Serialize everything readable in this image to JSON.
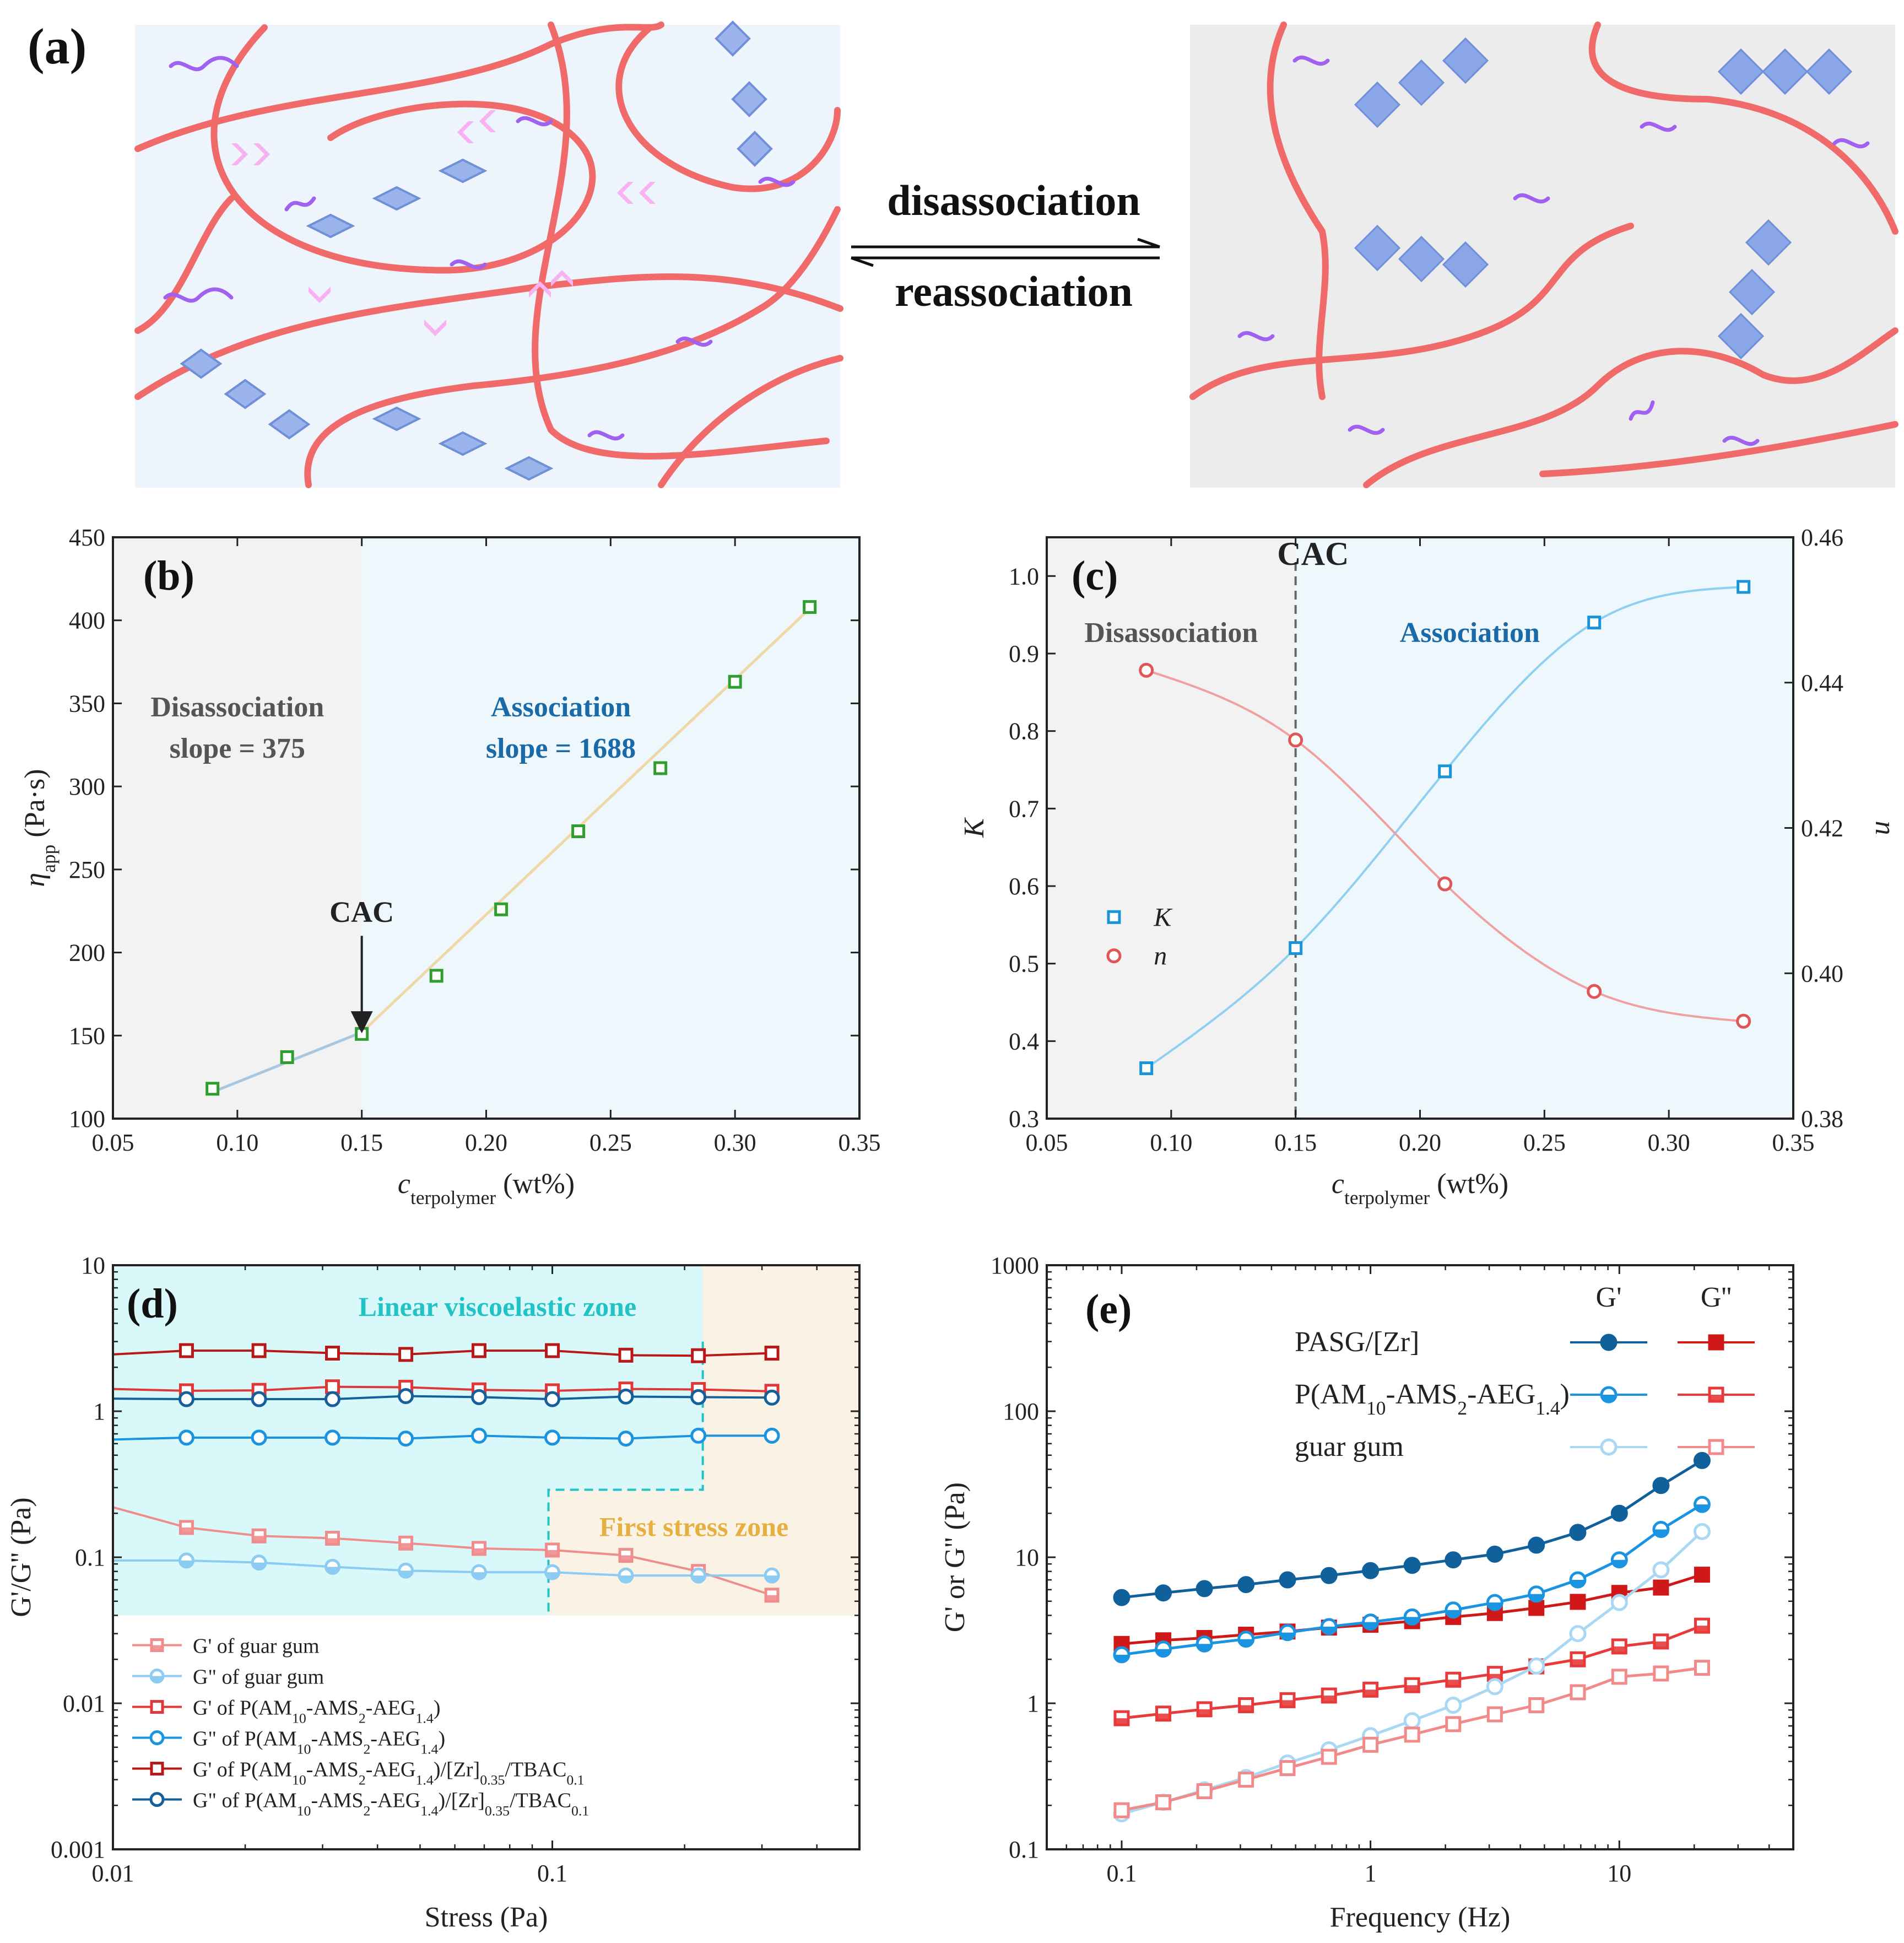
{
  "panel_a": {
    "label": "(a)",
    "arrow_top": "disassociation",
    "arrow_bottom": "reassociation",
    "colors": {
      "left_bg": "#eef4fb",
      "right_bg": "#ececec",
      "chain": "#f06a6a",
      "side": "#a060f0",
      "cluster": "#7fa2e8"
    }
  },
  "chart_data": [
    {
      "id": "b",
      "type": "line",
      "label": "(b)",
      "xlabel_main": "c",
      "xlabel_sub": "terpolymer",
      "xlabel_unit": " (wt%)",
      "ylabel_main": "η",
      "ylabel_sub": "app",
      "ylabel_unit": " (Pa·s)",
      "xlim": [
        0.05,
        0.35
      ],
      "ylim": [
        100,
        450
      ],
      "xticks": [
        0.05,
        0.1,
        0.15,
        0.2,
        0.25,
        0.3,
        0.35
      ],
      "xtick_labels": [
        "0.05",
        "0.10",
        "0.15",
        "0.20",
        "0.25",
        "0.30",
        "0.35"
      ],
      "yticks": [
        100,
        150,
        200,
        250,
        300,
        350,
        400,
        450
      ],
      "ytick_labels": [
        "100",
        "150",
        "200",
        "250",
        "300",
        "350",
        "400",
        "450"
      ],
      "regions": [
        {
          "x0": 0.05,
          "x1": 0.15,
          "color": "#f2f2f2"
        },
        {
          "x0": 0.15,
          "x1": 0.35,
          "color": "#eef7fc"
        }
      ],
      "series": [
        {
          "name": "data",
          "x": [
            0.09,
            0.12,
            0.15,
            0.18,
            0.206,
            0.237,
            0.27,
            0.3,
            0.33
          ],
          "y": [
            118,
            137,
            151,
            186,
            226,
            273,
            311,
            363,
            408
          ],
          "color": "#2f9e2f",
          "marker": "square"
        }
      ],
      "fits": [
        {
          "x": [
            0.09,
            0.15
          ],
          "y": [
            116,
            152
          ],
          "color": "#a9c8e0"
        },
        {
          "x": [
            0.15,
            0.33
          ],
          "y": [
            152,
            407
          ],
          "color": "#efd7a8"
        }
      ],
      "annotations": [
        {
          "lines": [
            "Disassociation",
            "slope = 375"
          ],
          "color": "#555555",
          "x": 0.1,
          "y": 340
        },
        {
          "lines": [
            "Association",
            "slope = 1688"
          ],
          "color": "#1a6aa8",
          "x": 0.23,
          "y": 340
        },
        {
          "lines": [
            "CAC"
          ],
          "color": "#222222",
          "x": 0.15,
          "y": 225,
          "arrow_to": 158
        }
      ]
    },
    {
      "id": "c",
      "type": "scatter",
      "label": "(c)",
      "xlabel_main": "c",
      "xlabel_sub": "terpolymer",
      "xlabel_unit": " (wt%)",
      "ylabel_left": "K",
      "ylabel_right": "n",
      "xlim": [
        0.05,
        0.35
      ],
      "ylim_left": [
        0.3,
        1.05
      ],
      "ylim_right": [
        0.38,
        0.46
      ],
      "xticks": [
        0.05,
        0.1,
        0.15,
        0.2,
        0.25,
        0.3,
        0.35
      ],
      "xtick_labels": [
        "0.05",
        "0.10",
        "0.15",
        "0.20",
        "0.25",
        "0.30",
        "0.35"
      ],
      "yticks_left": [
        0.3,
        0.4,
        0.5,
        0.6,
        0.7,
        0.8,
        0.9,
        1.0
      ],
      "ytick_labels_left": [
        "0.3",
        "0.4",
        "0.5",
        "0.6",
        "0.7",
        "0.8",
        "0.9",
        "1.0"
      ],
      "yticks_right": [
        0.38,
        0.4,
        0.42,
        0.44,
        0.46
      ],
      "ytick_labels_right": [
        "0.38",
        "0.40",
        "0.42",
        "0.44",
        "0.46"
      ],
      "regions": [
        {
          "x0": 0.05,
          "x1": 0.15,
          "color": "#f2f2f2"
        },
        {
          "x0": 0.15,
          "x1": 0.35,
          "color": "#eef7fc"
        }
      ],
      "series": [
        {
          "name": "K",
          "axis": "left",
          "x": [
            0.09,
            0.15,
            0.21,
            0.27,
            0.33
          ],
          "y": [
            0.365,
            0.52,
            0.748,
            0.94,
            0.986
          ],
          "color": "#1a94d8",
          "marker": "square"
        },
        {
          "name": "n",
          "axis": "right",
          "x": [
            0.09,
            0.15,
            0.21,
            0.27,
            0.33
          ],
          "y": [
            0.4417,
            0.4321,
            0.4123,
            0.3975,
            0.3934
          ],
          "color": "#e05656",
          "marker": "circle"
        }
      ],
      "legend": [
        "K",
        "n"
      ],
      "annotations": [
        {
          "lines": [
            "CAC"
          ],
          "color": "#222222"
        },
        {
          "lines": [
            "Disassociation"
          ],
          "color": "#555555"
        },
        {
          "lines": [
            "Association"
          ],
          "color": "#1a6aa8"
        }
      ]
    },
    {
      "id": "d",
      "type": "line",
      "label": "(d)",
      "xlabel": "Stress (Pa)",
      "ylabel": "G'/G'' (Pa)",
      "xscale": "log",
      "yscale": "log",
      "xlim": [
        0.01,
        0.5
      ],
      "ylim": [
        0.001,
        10
      ],
      "xticks": [
        0.01,
        0.1
      ],
      "xtick_labels": [
        "0.01",
        "0.1"
      ],
      "yticks": [
        0.001,
        0.01,
        0.1,
        1,
        10
      ],
      "ytick_labels": [
        "0.001",
        "0.01",
        "0.1",
        "1",
        "10"
      ],
      "zone_linear": "Linear viscoelastic zone",
      "zone_stress": "First stress zone",
      "series": [
        {
          "name": "G' of guar gum",
          "x": [
            0.01,
            0.0147,
            0.0215,
            0.0316,
            0.0464,
            0.0681,
            0.1,
            0.147,
            0.215,
            0.316
          ],
          "y": [
            0.22,
            0.16,
            0.14,
            0.135,
            0.125,
            0.115,
            0.112,
            0.103,
            0.08,
            0.055
          ],
          "color": "#f08c8c",
          "marker": "square-half",
          "draw_first": false
        },
        {
          "name": "G\"  of guar gum",
          "x": [
            0.01,
            0.0147,
            0.0215,
            0.0316,
            0.0464,
            0.0681,
            0.1,
            0.147,
            0.215,
            0.316
          ],
          "y": [
            0.095,
            0.095,
            0.092,
            0.086,
            0.081,
            0.079,
            0.079,
            0.075,
            0.075,
            0.075
          ],
          "color": "#8ccbf2",
          "marker": "circle-half",
          "draw_first": false
        },
        {
          "name": "G' of P(AM10-AMS2-AEG1.4)",
          "x": [
            0.01,
            0.0147,
            0.0215,
            0.0316,
            0.0464,
            0.0681,
            0.1,
            0.147,
            0.215,
            0.316
          ],
          "y": [
            1.42,
            1.38,
            1.39,
            1.47,
            1.46,
            1.4,
            1.38,
            1.42,
            1.41,
            1.37
          ],
          "color": "#e03838",
          "marker": "square",
          "draw_first": false
        },
        {
          "name": "G\" of P(AM10-AMS2-AEG1.4)",
          "x": [
            0.01,
            0.0147,
            0.0215,
            0.0316,
            0.0464,
            0.0681,
            0.1,
            0.147,
            0.215,
            0.316
          ],
          "y": [
            0.64,
            0.66,
            0.66,
            0.66,
            0.65,
            0.68,
            0.66,
            0.65,
            0.68,
            0.68
          ],
          "color": "#1a94e0",
          "marker": "circle",
          "draw_first": false
        },
        {
          "name": "G' of P(AM10-AMS2-AEG1.4)/[Zr]0.35/TBAC0.1",
          "x": [
            0.01,
            0.0147,
            0.0215,
            0.0316,
            0.0464,
            0.0681,
            0.1,
            0.147,
            0.215,
            0.316
          ],
          "y": [
            2.45,
            2.6,
            2.6,
            2.5,
            2.45,
            2.6,
            2.6,
            2.42,
            2.4,
            2.5
          ],
          "color": "#b81818",
          "marker": "square",
          "draw_first": false
        },
        {
          "name": "G\" of P(AM10-AMS2-AEG1.4)/[Zr]0.35/TBAC0.1",
          "x": [
            0.01,
            0.0147,
            0.0215,
            0.0316,
            0.0464,
            0.0681,
            0.1,
            0.147,
            0.215,
            0.316
          ],
          "y": [
            1.22,
            1.21,
            1.21,
            1.21,
            1.27,
            1.25,
            1.21,
            1.26,
            1.25,
            1.24
          ],
          "color": "#15609a",
          "marker": "circle",
          "draw_first": false
        }
      ],
      "legend_entries": [
        {
          "prefix": "G' of guar gum",
          "sub": "",
          "rest": ""
        },
        {
          "prefix": "G\"  of guar gum",
          "sub": "",
          "rest": ""
        },
        {
          "prefix": "G' of P(AM",
          "parts": [
            [
              "t",
              "G' of P(AM"
            ],
            [
              "s",
              "10"
            ],
            [
              "t",
              "-AMS"
            ],
            [
              "s",
              "2"
            ],
            [
              "t",
              "-AEG"
            ],
            [
              "s",
              "1.4"
            ],
            [
              "t",
              ")"
            ]
          ]
        },
        {
          "prefix": "G\" of P(AM",
          "parts": [
            [
              "t",
              "G\" of P(AM"
            ],
            [
              "s",
              "10"
            ],
            [
              "t",
              "-AMS"
            ],
            [
              "s",
              "2"
            ],
            [
              "t",
              "-AEG"
            ],
            [
              "s",
              "1.4"
            ],
            [
              "t",
              ")"
            ]
          ]
        },
        {
          "prefix": "G' of P(AM",
          "parts": [
            [
              "t",
              "G' of P(AM"
            ],
            [
              "s",
              "10"
            ],
            [
              "t",
              "-AMS"
            ],
            [
              "s",
              "2"
            ],
            [
              "t",
              "-AEG"
            ],
            [
              "s",
              "1.4"
            ],
            [
              "t",
              ")/[Zr]"
            ],
            [
              "s",
              "0.35"
            ],
            [
              "t",
              "/TBAC"
            ],
            [
              "s",
              "0.1"
            ]
          ]
        },
        {
          "prefix": "G\" of P(AM",
          "parts": [
            [
              "t",
              "G\" of P(AM"
            ],
            [
              "s",
              "10"
            ],
            [
              "t",
              "-AMS"
            ],
            [
              "s",
              "2"
            ],
            [
              "t",
              "-AEG"
            ],
            [
              "s",
              "1.4"
            ],
            [
              "t",
              ")/[Zr]"
            ],
            [
              "s",
              "0.35"
            ],
            [
              "t",
              "/TBAC"
            ],
            [
              "s",
              "0.1"
            ]
          ]
        }
      ]
    },
    {
      "id": "e",
      "type": "line",
      "label": "(e)",
      "xlabel": "Frequency (Hz)",
      "ylabel": "G' or G'' (Pa)",
      "xscale": "log",
      "yscale": "log",
      "xlim": [
        0.05,
        50
      ],
      "ylim": [
        0.1,
        1000
      ],
      "xticks": [
        0.1,
        1,
        10
      ],
      "xtick_labels": [
        "0.1",
        "1",
        "10"
      ],
      "yticks": [
        0.1,
        1,
        10,
        100,
        1000
      ],
      "ytick_labels": [
        "0.1",
        "1",
        "10",
        "100",
        "1000"
      ],
      "legend_header": [
        "G'",
        "G''"
      ],
      "legend_rows": [
        {
          "parts": [
            [
              "t",
              "PASG/[Zr]"
            ]
          ]
        },
        {
          "parts": [
            [
              "t",
              "P(AM"
            ],
            [
              "s",
              "10"
            ],
            [
              "t",
              "-AMS"
            ],
            [
              "s",
              "2"
            ],
            [
              "t",
              "-AEG"
            ],
            [
              "s",
              "1.4"
            ],
            [
              "t",
              ")"
            ]
          ]
        },
        {
          "parts": [
            [
              "t",
              "guar gum"
            ]
          ]
        }
      ],
      "frequencies": [
        0.1,
        0.147,
        0.215,
        0.316,
        0.464,
        0.681,
        1,
        1.47,
        2.15,
        3.16,
        4.64,
        6.81,
        10,
        14.7,
        21.5
      ],
      "series": [
        {
          "name": "PASG/[Zr] G'",
          "y": [
            5.3,
            5.7,
            6.1,
            6.5,
            7.0,
            7.5,
            8.1,
            8.8,
            9.6,
            10.5,
            12.1,
            14.8,
            20,
            31,
            46
          ],
          "color": "#10609c",
          "marker": "circle-filled"
        },
        {
          "name": "PASG/[Zr] G''",
          "y": [
            2.55,
            2.7,
            2.8,
            2.95,
            3.1,
            3.3,
            3.45,
            3.65,
            3.9,
            4.15,
            4.5,
            4.95,
            5.7,
            6.2,
            7.6
          ],
          "color": "#d01818",
          "marker": "square-filled"
        },
        {
          "name": "P(AM10-AMS2-AEG1.4) G'",
          "y": [
            2.15,
            2.35,
            2.55,
            2.75,
            3.05,
            3.35,
            3.6,
            3.9,
            4.35,
            4.9,
            5.6,
            7.0,
            9.6,
            15.5,
            23
          ],
          "color": "#1a94e0",
          "marker": "circle-half"
        },
        {
          "name": "P(AM10-AMS2-AEG1.4) G''",
          "y": [
            0.79,
            0.85,
            0.91,
            0.97,
            1.05,
            1.13,
            1.24,
            1.33,
            1.45,
            1.59,
            1.79,
            2.0,
            2.45,
            2.65,
            3.4
          ],
          "color": "#e83a3a",
          "marker": "square-half"
        },
        {
          "name": "guar gum G'",
          "y": [
            0.175,
            0.21,
            0.255,
            0.31,
            0.39,
            0.48,
            0.6,
            0.76,
            0.97,
            1.3,
            1.8,
            3.0,
            4.9,
            8.2,
            15
          ],
          "color": "#a9d8f5",
          "marker": "circle"
        },
        {
          "name": "guar gum G''",
          "y": [
            0.185,
            0.21,
            0.25,
            0.3,
            0.36,
            0.43,
            0.52,
            0.61,
            0.72,
            0.84,
            0.97,
            1.19,
            1.52,
            1.6,
            1.75
          ],
          "color": "#f28a8a",
          "marker": "square"
        }
      ]
    }
  ]
}
